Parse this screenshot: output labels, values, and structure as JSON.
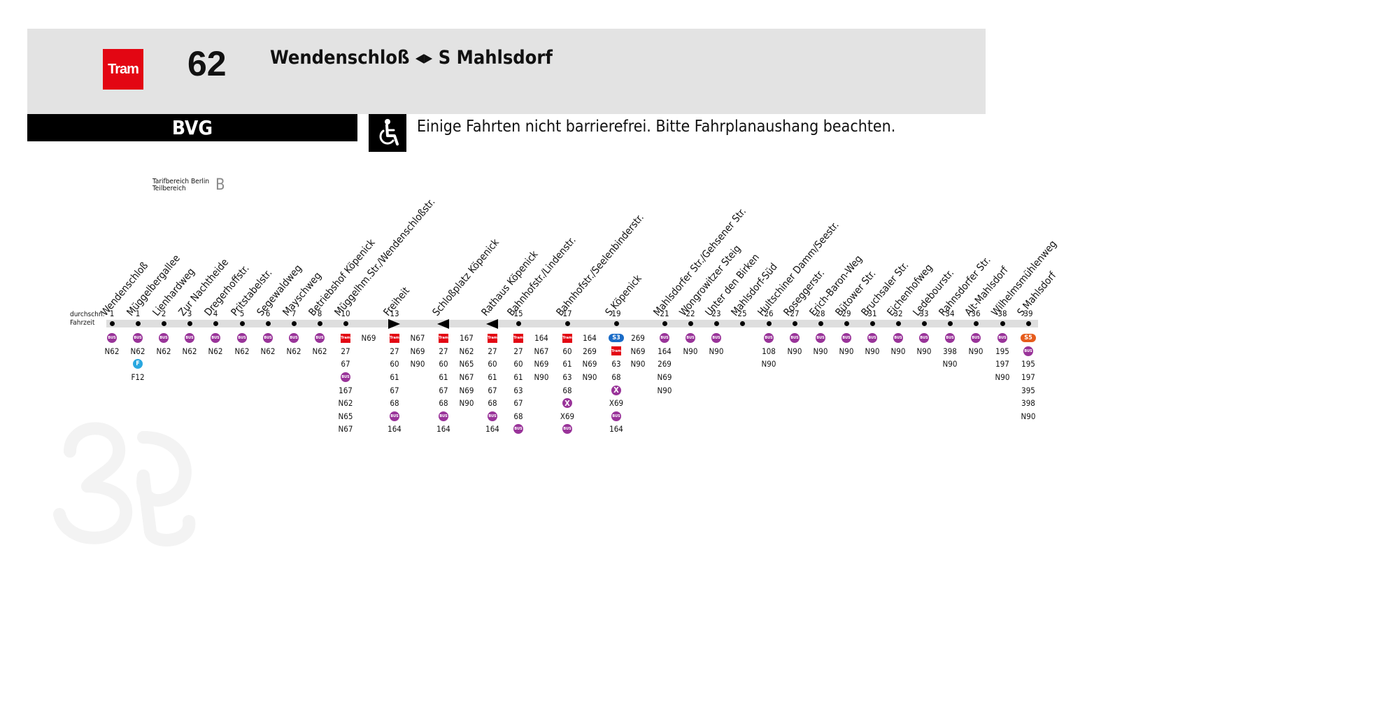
{
  "header": {
    "mode_label": "Tram",
    "line_number": "62",
    "route_title": "Wendenschloß ◂▸ S Mahlsdorf",
    "operator": "BVG",
    "accessibility_notice": "Einige Fahrten nicht barrierefrei. Bitte Fahrplanaushang beachten."
  },
  "tarif": {
    "label_line1": "Tarifbereich Berlin",
    "label_line2": "Teilbereich",
    "zone": "B"
  },
  "fahrzeit_label_line1": "durchschn.",
  "fahrzeit_label_line2": "Fahrzeit",
  "colors": {
    "tram_red": "#e30613",
    "bus_purple": "#993399",
    "ferry_blue": "#2aa8e0",
    "s3_blue": "#1a6cc7",
    "s5_orange": "#e65c1c",
    "header_gray": "#e3e3e3"
  },
  "stops": [
    {
      "name": "Wendenschloß",
      "time": "1",
      "marker": "dot",
      "below": [
        {
          "icon": "bus"
        },
        "N62"
      ]
    },
    {
      "name": "Müggelbergallee",
      "time": "1",
      "marker": "dot",
      "below": [
        {
          "icon": "bus"
        },
        "N62",
        {
          "icon": "ferry"
        },
        "F12"
      ]
    },
    {
      "name": "Lienhardweg",
      "time": "2",
      "marker": "dot",
      "below": [
        {
          "icon": "bus"
        },
        "N62"
      ]
    },
    {
      "name": "Zur Nachtheide",
      "time": "3",
      "marker": "dot",
      "below": [
        {
          "icon": "bus"
        },
        "N62"
      ]
    },
    {
      "name": "Dregerhoffstr.",
      "time": "4",
      "marker": "dot",
      "below": [
        {
          "icon": "bus"
        },
        "N62"
      ]
    },
    {
      "name": "Pritstabelstr.",
      "time": "5",
      "marker": "dot",
      "below": [
        {
          "icon": "bus"
        },
        "N62"
      ]
    },
    {
      "name": "Segewaldweg",
      "time": "6",
      "marker": "dot",
      "below": [
        {
          "icon": "bus"
        },
        "N62"
      ]
    },
    {
      "name": "Mayschweg",
      "time": "7",
      "marker": "dot",
      "below": [
        {
          "icon": "bus"
        },
        "N62"
      ]
    },
    {
      "name": "Betriebshof Köpenick",
      "time": "8",
      "marker": "dot",
      "below": [
        {
          "icon": "bus"
        },
        "N62"
      ]
    },
    {
      "name": "Müggelhm.Str./Wendenschloßstr.",
      "time": "10",
      "marker": "dot",
      "below": [
        {
          "icon": "tram"
        },
        "27",
        "67",
        {
          "icon": "bus"
        },
        "167",
        "N62",
        "N65",
        "N67"
      ],
      "below2": [
        "N69"
      ]
    },
    {
      "name": "Freiheit",
      "time": "13",
      "marker": "tri-right",
      "below": [
        {
          "icon": "tram"
        },
        "27",
        "60",
        "61",
        "67",
        "68",
        {
          "icon": "bus"
        },
        "164"
      ],
      "below2": [
        "N67",
        "N69",
        "N90"
      ]
    },
    {
      "name": "Schloßplatz Köpenick",
      "time": "",
      "marker": "tri-left",
      "below": [
        {
          "icon": "tram"
        },
        "27",
        "60",
        "61",
        "67",
        "68",
        {
          "icon": "bus"
        },
        "164"
      ],
      "below2": [
        "167",
        "N62",
        "N65",
        "N67",
        "N69",
        "N90"
      ]
    },
    {
      "name": "Rathaus Köpenick",
      "time": "",
      "marker": "tri-left",
      "below": [
        {
          "icon": "tram"
        },
        "27",
        "60",
        "61",
        "67",
        "68",
        {
          "icon": "bus"
        },
        "164"
      ]
    },
    {
      "name": "Bahnhofstr./Lindenstr.",
      "time": "15",
      "marker": "dot",
      "below": [
        {
          "icon": "tram"
        },
        "27",
        "60",
        "61",
        "63",
        "67",
        "68",
        {
          "icon": "bus"
        }
      ],
      "below2": [
        "164",
        "N67",
        "N69",
        "N90"
      ]
    },
    {
      "name": "Bahnhofstr./Seelenbinderstr.",
      "time": "17",
      "marker": "dot",
      "below": [
        {
          "icon": "tram"
        },
        "60",
        "61",
        "63",
        "68",
        {
          "icon": "express"
        },
        "X69",
        {
          "icon": "bus"
        }
      ],
      "below2": [
        "164",
        "269",
        "N69",
        "N90"
      ]
    },
    {
      "name": "S Köpenick",
      "time": "19",
      "marker": "dot",
      "below": [
        {
          "icon": "s3"
        },
        {
          "icon": "tram"
        },
        "63",
        "68",
        {
          "icon": "express"
        },
        "X69",
        {
          "icon": "bus"
        },
        "164"
      ],
      "below2": [
        "269",
        "N69",
        "N90"
      ]
    },
    {
      "name": "Mahlsdorfer Str./Gehsener Str.",
      "time": "21",
      "marker": "dot",
      "below": [
        {
          "icon": "bus"
        },
        "164",
        "269",
        "N69",
        "N90"
      ]
    },
    {
      "name": "Wongrowitzer Steig",
      "time": "22",
      "marker": "dot",
      "below": [
        {
          "icon": "bus"
        },
        "N90"
      ]
    },
    {
      "name": "Unter den Birken",
      "time": "23",
      "marker": "dot",
      "below": [
        {
          "icon": "bus"
        },
        "N90"
      ]
    },
    {
      "name": "Mahlsdorf-Süd",
      "time": "25",
      "marker": "dot",
      "below": []
    },
    {
      "name": "Hultschiner Damm/Seestr.",
      "time": "26",
      "marker": "dot",
      "below": [
        {
          "icon": "bus"
        },
        "108",
        "N90"
      ]
    },
    {
      "name": "Roseggerstr.",
      "time": "27",
      "marker": "dot",
      "below": [
        {
          "icon": "bus"
        },
        "N90"
      ]
    },
    {
      "name": "Erich-Baron-Weg",
      "time": "28",
      "marker": "dot",
      "below": [
        {
          "icon": "bus"
        },
        "N90"
      ]
    },
    {
      "name": "Bütower Str.",
      "time": "29",
      "marker": "dot",
      "below": [
        {
          "icon": "bus"
        },
        "N90"
      ]
    },
    {
      "name": "Bruchsaler Str.",
      "time": "31",
      "marker": "dot",
      "below": [
        {
          "icon": "bus"
        },
        "N90"
      ]
    },
    {
      "name": "Eichenhofweg",
      "time": "32",
      "marker": "dot",
      "below": [
        {
          "icon": "bus"
        },
        "N90"
      ]
    },
    {
      "name": "Ledebourstr.",
      "time": "33",
      "marker": "dot",
      "below": [
        {
          "icon": "bus"
        },
        "N90"
      ]
    },
    {
      "name": "Rahnsdorfer Str.",
      "time": "34",
      "marker": "dot",
      "below": [
        {
          "icon": "bus"
        },
        "398",
        "N90"
      ]
    },
    {
      "name": "Alt-Mahlsdorf",
      "time": "36",
      "marker": "dot",
      "below": [
        {
          "icon": "bus"
        },
        "N90"
      ]
    },
    {
      "name": "Wilhelmsmühlenweg",
      "time": "38",
      "marker": "dot",
      "below": [
        {
          "icon": "bus"
        },
        "195",
        "197",
        "N90"
      ]
    },
    {
      "name": "S Mahlsdorf",
      "time": "39",
      "marker": "dot",
      "below": [
        {
          "icon": "s5"
        },
        {
          "icon": "bus"
        },
        "195",
        "197",
        "395",
        "398",
        "N90"
      ]
    }
  ]
}
